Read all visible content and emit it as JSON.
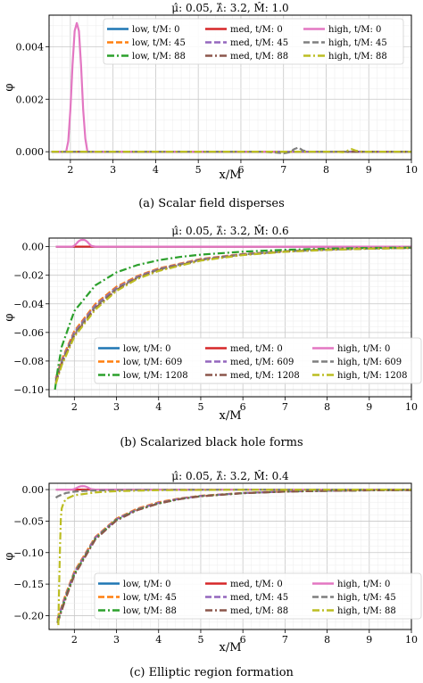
{
  "chart_data": [
    {
      "type": "line",
      "title": "μ̂: 0.05, λ̂: 3.2, M̂: 1.0",
      "caption": "(a) Scalar field disperses",
      "xlabel": "x/M",
      "ylabel": "φ",
      "xlim": [
        1.5,
        10
      ],
      "ylim": [
        -0.0003,
        0.0052
      ],
      "xticks": [
        "2",
        "3",
        "4",
        "5",
        "6",
        "7",
        "8",
        "9",
        "10"
      ],
      "yticks": [
        {
          "v": 0.0,
          "label": "0.000"
        },
        {
          "v": 0.002,
          "label": "0.002"
        },
        {
          "v": 0.004,
          "label": "0.004"
        }
      ],
      "grid": true,
      "legend_placement": "top-right",
      "series": [
        {
          "name": "low, t/M: 0",
          "color": "#1f77b4",
          "dash": "solid",
          "width": 2.2,
          "x": [
            1.56,
            10
          ],
          "y": [
            0.0,
            0.0
          ]
        },
        {
          "name": "med, t/M: 0",
          "color": "#d62728",
          "dash": "solid",
          "width": 2.2,
          "x": [
            1.56,
            10
          ],
          "y": [
            0.0,
            0.0
          ]
        },
        {
          "name": "high, t/M: 0",
          "color": "#e377c2",
          "dash": "solid",
          "width": 2.2,
          "x": [
            1.56,
            1.9,
            1.95,
            2.0,
            2.05,
            2.1,
            2.15,
            2.2,
            2.25,
            2.3,
            2.35,
            2.4,
            2.45,
            2.5,
            10
          ],
          "y": [
            0.0,
            0.0,
            0.0004,
            0.0016,
            0.0033,
            0.0046,
            0.0049,
            0.0046,
            0.0033,
            0.0016,
            0.0005,
            0.0,
            0.0,
            0.0,
            0.0
          ]
        },
        {
          "name": "low, t/M: 45",
          "color": "#ff7f0e",
          "dash": "dashed",
          "width": 2.2,
          "x": [
            1.56,
            10
          ],
          "y": [
            0.0,
            0.0
          ]
        },
        {
          "name": "med, t/M: 45",
          "color": "#9467bd",
          "dash": "dashed",
          "width": 2.2,
          "x": [
            1.56,
            10
          ],
          "y": [
            0.0,
            0.0
          ]
        },
        {
          "name": "high, t/M: 45",
          "color": "#7f7f7f",
          "dash": "dashed",
          "width": 2.2,
          "x": [
            1.56,
            6.5,
            6.8,
            7.0,
            7.15,
            7.25,
            7.35,
            7.45,
            7.6,
            10
          ],
          "y": [
            0.0,
            0.0,
            -3e-05,
            -6e-05,
            -2e-05,
            0.0001,
            0.00016,
            5e-05,
            0.0,
            0.0
          ]
        },
        {
          "name": "low, t/M: 88",
          "color": "#2ca02c",
          "dash": "dashdot",
          "width": 2.2,
          "x": [
            1.56,
            10
          ],
          "y": [
            0.0,
            0.0
          ]
        },
        {
          "name": "med, t/M: 88",
          "color": "#8c564b",
          "dash": "dashdot",
          "width": 2.2,
          "x": [
            1.56,
            10
          ],
          "y": [
            0.0,
            0.0
          ]
        },
        {
          "name": "high, t/M: 88",
          "color": "#bcbd22",
          "dash": "dashdot",
          "width": 2.2,
          "x": [
            1.56,
            8.2,
            8.4,
            8.5,
            8.6,
            8.7,
            8.85,
            10
          ],
          "y": [
            0.0,
            0.0,
            -2e-05,
            4e-05,
            0.0001,
            4e-05,
            0.0,
            0.0
          ]
        }
      ]
    },
    {
      "type": "line",
      "title": "μ̂: 0.05, λ̂: 3.2, M̂: 0.6",
      "caption": "(b) Scalarized black hole forms",
      "xlabel": "x/M",
      "ylabel": "φ",
      "xlim": [
        1.4,
        10
      ],
      "ylim": [
        -0.105,
        0.006
      ],
      "xticks": [
        "2",
        "3",
        "4",
        "5",
        "6",
        "7",
        "8",
        "9",
        "10"
      ],
      "yticks": [
        {
          "v": 0.0,
          "label": "0.00"
        },
        {
          "v": -0.02,
          "label": "−0.02"
        },
        {
          "v": -0.04,
          "label": "−0.04"
        },
        {
          "v": -0.06,
          "label": "−0.06"
        },
        {
          "v": -0.08,
          "label": "−0.08"
        },
        {
          "v": -0.1,
          "label": "−0.10"
        }
      ],
      "grid": true,
      "legend_placement": "lower-right",
      "series": [
        {
          "name": "low, t/M: 0",
          "color": "#1f77b4",
          "dash": "solid",
          "width": 2.2,
          "x": [
            1.56,
            10
          ],
          "y": [
            0.0,
            0.0
          ]
        },
        {
          "name": "med, t/M: 0",
          "color": "#d62728",
          "dash": "solid",
          "width": 2.2,
          "x": [
            1.56,
            10
          ],
          "y": [
            0.0,
            0.0
          ]
        },
        {
          "name": "high, t/M: 0",
          "color": "#e377c2",
          "dash": "solid",
          "width": 2.2,
          "x": [
            1.56,
            1.95,
            2.0,
            2.05,
            2.1,
            2.15,
            2.2,
            2.25,
            2.3,
            2.35,
            2.4,
            2.5,
            10
          ],
          "y": [
            0.0,
            0.0,
            0.0007,
            0.0022,
            0.0038,
            0.0046,
            0.0048,
            0.0046,
            0.0036,
            0.002,
            0.0006,
            0.0,
            0.0
          ]
        },
        {
          "name": "low, t/M: 609",
          "color": "#ff7f0e",
          "dash": "dashed",
          "width": 2.2,
          "x": [
            1.56,
            1.7,
            2.0,
            2.5,
            3.0,
            3.5,
            4.0,
            5.0,
            6.0,
            7.0,
            8.0,
            9.0,
            10.0
          ],
          "y": [
            -0.092,
            -0.079,
            -0.059,
            -0.04,
            -0.028,
            -0.0205,
            -0.0152,
            -0.0086,
            -0.0051,
            -0.0031,
            -0.0019,
            -0.0012,
            -0.0008
          ]
        },
        {
          "name": "med, t/M: 609",
          "color": "#9467bd",
          "dash": "dashed",
          "width": 2.2,
          "x": [
            1.56,
            1.7,
            2.0,
            2.5,
            3.0,
            3.5,
            4.0,
            5.0,
            6.0,
            7.0,
            8.0,
            9.0,
            10.0
          ],
          "y": [
            -0.093,
            -0.08,
            -0.06,
            -0.041,
            -0.0288,
            -0.021,
            -0.0156,
            -0.0089,
            -0.0053,
            -0.0032,
            -0.002,
            -0.0013,
            -0.0008
          ]
        },
        {
          "name": "high, t/M: 609",
          "color": "#7f7f7f",
          "dash": "dashed",
          "width": 2.2,
          "x": [
            1.56,
            1.7,
            2.0,
            2.5,
            3.0,
            3.5,
            4.0,
            5.0,
            6.0,
            7.0,
            8.0,
            9.0,
            10.0
          ],
          "y": [
            -0.094,
            -0.081,
            -0.061,
            -0.042,
            -0.0295,
            -0.0215,
            -0.016,
            -0.0092,
            -0.0055,
            -0.0034,
            -0.0021,
            -0.0013,
            -0.0009
          ]
        },
        {
          "name": "low, t/M: 1208",
          "color": "#2ca02c",
          "dash": "dashdot",
          "width": 2.2,
          "x": [
            1.54,
            1.6,
            1.7,
            2.0,
            2.5,
            3.0,
            3.5,
            4.0,
            4.5,
            5.0,
            6.0,
            7.0,
            8.0,
            9.0,
            10.0
          ],
          "y": [
            -0.1,
            -0.087,
            -0.07,
            -0.045,
            -0.027,
            -0.018,
            -0.0128,
            -0.0095,
            -0.0072,
            -0.0056,
            -0.0035,
            -0.0022,
            -0.0014,
            -0.0009,
            -0.0006
          ]
        },
        {
          "name": "med, t/M: 1208",
          "color": "#8c564b",
          "dash": "dashdot",
          "width": 2.2,
          "x": [
            1.56,
            1.7,
            2.0,
            2.5,
            3.0,
            3.5,
            4.0,
            5.0,
            6.0,
            7.0,
            8.0,
            9.0,
            10.0
          ],
          "y": [
            -0.095,
            -0.082,
            -0.062,
            -0.043,
            -0.0302,
            -0.022,
            -0.0165,
            -0.0095,
            -0.0057,
            -0.0035,
            -0.0022,
            -0.0014,
            -0.0009
          ]
        },
        {
          "name": "high, t/M: 1208",
          "color": "#bcbd22",
          "dash": "dashdot",
          "width": 2.2,
          "x": [
            1.56,
            1.7,
            2.0,
            2.5,
            3.0,
            3.5,
            4.0,
            5.0,
            6.0,
            7.0,
            8.0,
            9.0,
            10.0
          ],
          "y": [
            -0.096,
            -0.083,
            -0.063,
            -0.044,
            -0.031,
            -0.0225,
            -0.017,
            -0.0098,
            -0.0059,
            -0.0036,
            -0.0023,
            -0.0014,
            -0.0009
          ]
        }
      ]
    },
    {
      "type": "line",
      "title": "μ̂: 0.05, λ̂: 3.2, M̂: 0.4",
      "caption": "(c) Elliptic region formation",
      "xlabel": "x/M",
      "ylabel": "φ",
      "xlim": [
        1.4,
        10
      ],
      "ylim": [
        -0.222,
        0.01
      ],
      "xticks": [
        "2",
        "3",
        "4",
        "5",
        "6",
        "7",
        "8",
        "9",
        "10"
      ],
      "yticks": [
        {
          "v": 0.0,
          "label": "0.00"
        },
        {
          "v": -0.05,
          "label": "−0.05"
        },
        {
          "v": -0.1,
          "label": "−0.10"
        },
        {
          "v": -0.15,
          "label": "−0.15"
        },
        {
          "v": -0.2,
          "label": "−0.20"
        }
      ],
      "grid": true,
      "legend_placement": "lower-right",
      "series": [
        {
          "name": "low, t/M: 0",
          "color": "#1f77b4",
          "dash": "solid",
          "width": 2.2,
          "x": [
            1.56,
            10
          ],
          "y": [
            0.0,
            0.0
          ]
        },
        {
          "name": "med, t/M: 0",
          "color": "#d62728",
          "dash": "solid",
          "width": 2.2,
          "x": [
            1.56,
            10
          ],
          "y": [
            0.0,
            0.0
          ]
        },
        {
          "name": "high, t/M: 0",
          "color": "#e377c2",
          "dash": "solid",
          "width": 2.2,
          "x": [
            1.56,
            1.95,
            2.0,
            2.05,
            2.1,
            2.15,
            2.2,
            2.25,
            2.3,
            2.35,
            2.4,
            2.5,
            10
          ],
          "y": [
            0.0,
            0.0,
            0.0008,
            0.0025,
            0.0042,
            0.0052,
            0.0055,
            0.0052,
            0.004,
            0.0022,
            0.0007,
            0.0,
            0.0
          ]
        },
        {
          "name": "low, t/M: 45",
          "color": "#ff7f0e",
          "dash": "dashed",
          "width": 2.2,
          "x": [
            1.6,
            1.7,
            1.8,
            2.0,
            2.5,
            3.0,
            3.5,
            4.0,
            4.5,
            5.0,
            6.0,
            7.0,
            8.0,
            9.0,
            10.0
          ],
          "y": [
            -0.205,
            -0.185,
            -0.165,
            -0.13,
            -0.075,
            -0.046,
            -0.03,
            -0.02,
            -0.014,
            -0.0098,
            -0.0053,
            -0.003,
            -0.0018,
            -0.0011,
            -0.0007
          ]
        },
        {
          "name": "med, t/M: 45",
          "color": "#9467bd",
          "dash": "dashed",
          "width": 2.2,
          "x": [
            1.6,
            1.7,
            1.8,
            2.0,
            2.5,
            3.0,
            3.5,
            4.0,
            4.5,
            5.0,
            6.0,
            7.0,
            8.0,
            9.0,
            10.0
          ],
          "y": [
            -0.207,
            -0.187,
            -0.167,
            -0.132,
            -0.076,
            -0.047,
            -0.031,
            -0.021,
            -0.0145,
            -0.0101,
            -0.0055,
            -0.0031,
            -0.0019,
            -0.0011,
            -0.0007
          ]
        },
        {
          "name": "high, t/M: 45",
          "color": "#7f7f7f",
          "dash": "dashed",
          "width": 2.2,
          "x": [
            1.56,
            1.6,
            1.7,
            1.8,
            2.0,
            2.2,
            2.5,
            3.0,
            4.0,
            5.0,
            6.0,
            8.0,
            10.0
          ],
          "y": [
            -0.013,
            -0.011,
            -0.008,
            -0.0055,
            -0.0033,
            -0.0022,
            -0.0014,
            -0.0008,
            -0.0004,
            -0.0002,
            -0.0001,
            0.0,
            0.0
          ]
        },
        {
          "name": "low, t/M: 88",
          "color": "#2ca02c",
          "dash": "dashdot",
          "width": 2.2,
          "x": [
            1.6,
            1.7,
            1.8,
            2.0,
            2.5,
            3.0,
            3.5,
            4.0,
            4.5,
            5.0,
            6.0,
            7.0,
            8.0,
            9.0,
            10.0
          ],
          "y": [
            -0.21,
            -0.19,
            -0.17,
            -0.134,
            -0.078,
            -0.048,
            -0.032,
            -0.022,
            -0.015,
            -0.0105,
            -0.0057,
            -0.0032,
            -0.002,
            -0.0012,
            -0.0008
          ]
        },
        {
          "name": "med, t/M: 88",
          "color": "#8c564b",
          "dash": "dashdot",
          "width": 2.2,
          "x": [
            1.6,
            1.7,
            1.8,
            2.0,
            2.5,
            3.0,
            3.5,
            4.0,
            4.5,
            5.0,
            6.0,
            7.0,
            8.0,
            9.0,
            10.0
          ],
          "y": [
            -0.212,
            -0.192,
            -0.172,
            -0.136,
            -0.079,
            -0.049,
            -0.0325,
            -0.0222,
            -0.0152,
            -0.0107,
            -0.0058,
            -0.0033,
            -0.002,
            -0.0012,
            -0.0008
          ]
        },
        {
          "name": "high, t/M: 88",
          "color": "#bcbd22",
          "dash": "dashdot",
          "width": 2.2,
          "x": [
            1.62,
            1.64,
            1.66,
            1.68,
            1.7,
            1.75,
            1.8,
            2.0,
            2.5,
            3.0,
            4.0,
            6.0,
            10.0
          ],
          "y": [
            -0.215,
            -0.15,
            -0.09,
            -0.045,
            -0.03,
            -0.02,
            -0.015,
            -0.009,
            -0.0045,
            -0.0025,
            -0.001,
            -0.0003,
            0.0
          ]
        }
      ]
    }
  ]
}
